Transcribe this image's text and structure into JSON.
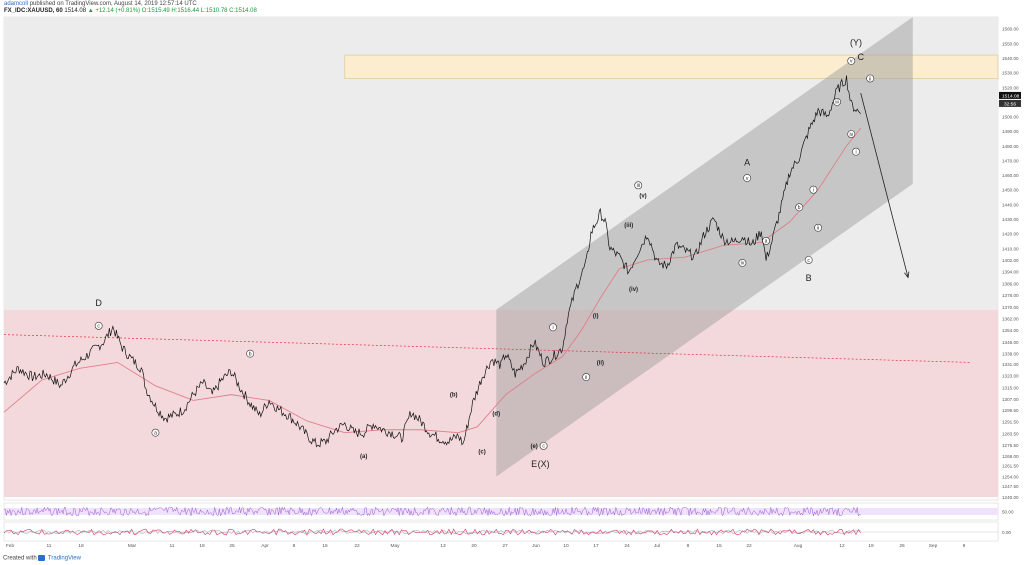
{
  "header": {
    "user": "adamcoll",
    "published": "published on TradingView.com, August 14, 2019 12:57:14 UTC",
    "symbol": "FX_IDC:XAUUSD, 60",
    "price": "1514.08",
    "change": "▲ +12.14 (+0.81%)",
    "open": "O:1515.49",
    "high": "H:1516.44",
    "low": "L:1510.78",
    "close": "C:1514.08"
  },
  "footer": {
    "created_with": "Created with",
    "brand": "TradingView"
  },
  "colors": {
    "up_zone": "#ececec",
    "down_zone": "#f4d9dc",
    "target_zone": "#fbedcd",
    "channel": "#9a9a9a",
    "price": "#111111",
    "ma": "#e07f89",
    "dashed": "#e0303a",
    "rsi": "#9a5bd6",
    "osc": "#d6336c"
  },
  "chart_data": {
    "type": "line",
    "x_ticks": [
      "Feb",
      "11",
      "18",
      "Mar",
      "11",
      "18",
      "25",
      "Apr",
      "8",
      "15",
      "22",
      "May",
      "13",
      "20",
      "27",
      "Jun",
      "10",
      "17",
      "24",
      "Jul",
      "8",
      "15",
      "22",
      "Aug",
      "12",
      "19",
      "26",
      "Sep",
      "9"
    ],
    "y_ticks": [
      "1560.00",
      "1550.00",
      "1540.00",
      "1530.00",
      "1520.00",
      "1510.00",
      "1500.00",
      "1490.00",
      "1480.00",
      "1470.00",
      "1460.00",
      "1450.00",
      "1440.00",
      "1430.00",
      "1420.00",
      "1410.00",
      "1402.00",
      "1394.00",
      "1386.00",
      "1378.00",
      "1370.00",
      "1362.00",
      "1354.00",
      "1346.00",
      "1338.00",
      "1331.00",
      "1323.00",
      "1315.00",
      "1307.00",
      "1299.50",
      "1291.50",
      "1283.50",
      "1275.50",
      "1268.00",
      "1261.50",
      "1254.00",
      "1247.50",
      "1240.00"
    ],
    "ylim": [
      1238,
      1568
    ],
    "y_ticks_osc": [
      "50.00",
      "0.00"
    ],
    "last_price": "1514.08",
    "countdown": "32:56",
    "price_path": [
      [
        0,
        1318
      ],
      [
        3,
        1328
      ],
      [
        6,
        1322
      ],
      [
        9,
        1324
      ],
      [
        12,
        1316
      ],
      [
        15,
        1330
      ],
      [
        18,
        1338
      ],
      [
        21,
        1346
      ],
      [
        23,
        1356
      ],
      [
        25,
        1342
      ],
      [
        27,
        1334
      ],
      [
        29,
        1328
      ],
      [
        30,
        1314
      ],
      [
        32,
        1302
      ],
      [
        34,
        1294
      ],
      [
        36,
        1296
      ],
      [
        38,
        1300
      ],
      [
        40,
        1310
      ],
      [
        42,
        1318
      ],
      [
        44,
        1310
      ],
      [
        46,
        1320
      ],
      [
        48,
        1326
      ],
      [
        50,
        1314
      ],
      [
        52,
        1304
      ],
      [
        54,
        1296
      ],
      [
        56,
        1306
      ],
      [
        58,
        1300
      ],
      [
        60,
        1296
      ],
      [
        62,
        1290
      ],
      [
        64,
        1282
      ],
      [
        66,
        1276
      ],
      [
        68,
        1278
      ],
      [
        70,
        1286
      ],
      [
        72,
        1290
      ],
      [
        74,
        1284
      ],
      [
        76,
        1284
      ],
      [
        78,
        1290
      ],
      [
        80,
        1286
      ],
      [
        82,
        1284
      ],
      [
        84,
        1280
      ],
      [
        86,
        1298
      ],
      [
        88,
        1292
      ],
      [
        90,
        1284
      ],
      [
        92,
        1280
      ],
      [
        94,
        1278
      ],
      [
        96,
        1282
      ],
      [
        97,
        1276
      ],
      [
        99,
        1304
      ],
      [
        101,
        1322
      ],
      [
        103,
        1334
      ],
      [
        105,
        1330
      ],
      [
        106,
        1338
      ],
      [
        108,
        1324
      ],
      [
        110,
        1332
      ],
      [
        112,
        1346
      ],
      [
        114,
        1332
      ],
      [
        116,
        1336
      ],
      [
        118,
        1342
      ],
      [
        119,
        1362
      ],
      [
        121,
        1384
      ],
      [
        123,
        1400
      ],
      [
        124,
        1420
      ],
      [
        126,
        1434
      ],
      [
        127,
        1428
      ],
      [
        128,
        1410
      ],
      [
        130,
        1404
      ],
      [
        132,
        1394
      ],
      [
        134,
        1408
      ],
      [
        136,
        1420
      ],
      [
        138,
        1400
      ],
      [
        140,
        1398
      ],
      [
        142,
        1412
      ],
      [
        144,
        1408
      ],
      [
        146,
        1404
      ],
      [
        148,
        1420
      ],
      [
        150,
        1430
      ],
      [
        152,
        1416
      ],
      [
        154,
        1414
      ],
      [
        156,
        1418
      ],
      [
        158,
        1412
      ],
      [
        160,
        1422
      ],
      [
        161,
        1402
      ],
      [
        162,
        1412
      ],
      [
        164,
        1436
      ],
      [
        166,
        1462
      ],
      [
        168,
        1472
      ],
      [
        170,
        1490
      ],
      [
        172,
        1504
      ],
      [
        174,
        1500
      ],
      [
        176,
        1518
      ],
      [
        178,
        1526
      ],
      [
        179,
        1508
      ],
      [
        181,
        1502
      ]
    ],
    "ma_path": [
      [
        0,
        1298
      ],
      [
        8,
        1320
      ],
      [
        16,
        1328
      ],
      [
        24,
        1332
      ],
      [
        32,
        1316
      ],
      [
        40,
        1306
      ],
      [
        48,
        1310
      ],
      [
        56,
        1306
      ],
      [
        64,
        1292
      ],
      [
        72,
        1284
      ],
      [
        80,
        1286
      ],
      [
        88,
        1286
      ],
      [
        96,
        1284
      ],
      [
        100,
        1288
      ],
      [
        106,
        1310
      ],
      [
        112,
        1324
      ],
      [
        118,
        1336
      ],
      [
        122,
        1354
      ],
      [
        126,
        1376
      ],
      [
        130,
        1396
      ],
      [
        136,
        1402
      ],
      [
        144,
        1404
      ],
      [
        152,
        1412
      ],
      [
        160,
        1414
      ],
      [
        166,
        1428
      ],
      [
        172,
        1450
      ],
      [
        178,
        1480
      ],
      [
        181,
        1492
      ]
    ],
    "channel": {
      "upper": [
        [
          104,
          1368
        ],
        [
          192,
          1568
        ]
      ],
      "lower": [
        [
          104,
          1254
        ],
        [
          192,
          1454
        ]
      ]
    },
    "dashed_resistance": [
      [
        0,
        1351
      ],
      [
        204,
        1332
      ]
    ],
    "projection_arrow": [
      [
        181,
        1516
      ],
      [
        191,
        1390
      ]
    ],
    "zones": {
      "target": [
        1526,
        1542
      ],
      "downtrend": [
        1240,
        1368
      ],
      "neutral": [
        1368,
        1568
      ]
    },
    "annotations": [
      {
        "text": "D",
        "x": 20,
        "y": 1372,
        "style": "letter"
      },
      {
        "text": "c",
        "x": 20,
        "y": 1357,
        "style": "circle"
      },
      {
        "text": "b",
        "x": 52,
        "y": 1338,
        "style": "circle"
      },
      {
        "text": "a",
        "x": 32,
        "y": 1284,
        "style": "circle"
      },
      {
        "text": "(a)",
        "x": 76,
        "y": 1268,
        "style": "plain"
      },
      {
        "text": "(b)",
        "x": 95,
        "y": 1310,
        "style": "plain"
      },
      {
        "text": "(c)",
        "x": 101,
        "y": 1271,
        "style": "plain"
      },
      {
        "text": "(d)",
        "x": 104,
        "y": 1297,
        "style": "plain"
      },
      {
        "text": "(e)",
        "x": 112,
        "y": 1275,
        "style": "plain"
      },
      {
        "text": "c",
        "x": 114,
        "y": 1275,
        "style": "circle"
      },
      {
        "text": "E",
        "x": 112,
        "y": 1262,
        "style": "letter"
      },
      {
        "text": "(X)",
        "x": 114,
        "y": 1262,
        "style": "letter"
      },
      {
        "text": "i",
        "x": 116,
        "y": 1356,
        "style": "circle"
      },
      {
        "text": "ii",
        "x": 123,
        "y": 1322,
        "style": "circle"
      },
      {
        "text": "(i)",
        "x": 125,
        "y": 1364,
        "style": "plain"
      },
      {
        "text": "(ii)",
        "x": 126,
        "y": 1332,
        "style": "plain"
      },
      {
        "text": "(iii)",
        "x": 132,
        "y": 1426,
        "style": "plain"
      },
      {
        "text": "(iv)",
        "x": 133,
        "y": 1382,
        "style": "plain"
      },
      {
        "text": "(v)",
        "x": 135,
        "y": 1446,
        "style": "plain"
      },
      {
        "text": "iii",
        "x": 134,
        "y": 1453,
        "style": "circle"
      },
      {
        "text": "iv",
        "x": 156,
        "y": 1400,
        "style": "circle"
      },
      {
        "text": "v",
        "x": 157,
        "y": 1458,
        "style": "circle"
      },
      {
        "text": "A",
        "x": 157,
        "y": 1468,
        "style": "letter"
      },
      {
        "text": "a",
        "x": 161,
        "y": 1415,
        "style": "circle"
      },
      {
        "text": "b",
        "x": 168,
        "y": 1438,
        "style": "circle"
      },
      {
        "text": "c",
        "x": 170,
        "y": 1402,
        "style": "circle"
      },
      {
        "text": "B",
        "x": 170,
        "y": 1389,
        "style": "letter"
      },
      {
        "text": "i",
        "x": 171,
        "y": 1450,
        "style": "circle"
      },
      {
        "text": "ii",
        "x": 172,
        "y": 1424,
        "style": "circle"
      },
      {
        "text": "iii",
        "x": 176,
        "y": 1510,
        "style": "circle"
      },
      {
        "text": "iv",
        "x": 179,
        "y": 1488,
        "style": "circle"
      },
      {
        "text": "v",
        "x": 179,
        "y": 1538,
        "style": "circle"
      },
      {
        "text": "ii",
        "x": 183,
        "y": 1526,
        "style": "circle"
      },
      {
        "text": "i",
        "x": 180,
        "y": 1476,
        "style": "circle"
      },
      {
        "text": "(Y)",
        "x": 180,
        "y": 1550,
        "style": "letter"
      },
      {
        "text": "C",
        "x": 181,
        "y": 1540,
        "style": "letter"
      }
    ]
  }
}
